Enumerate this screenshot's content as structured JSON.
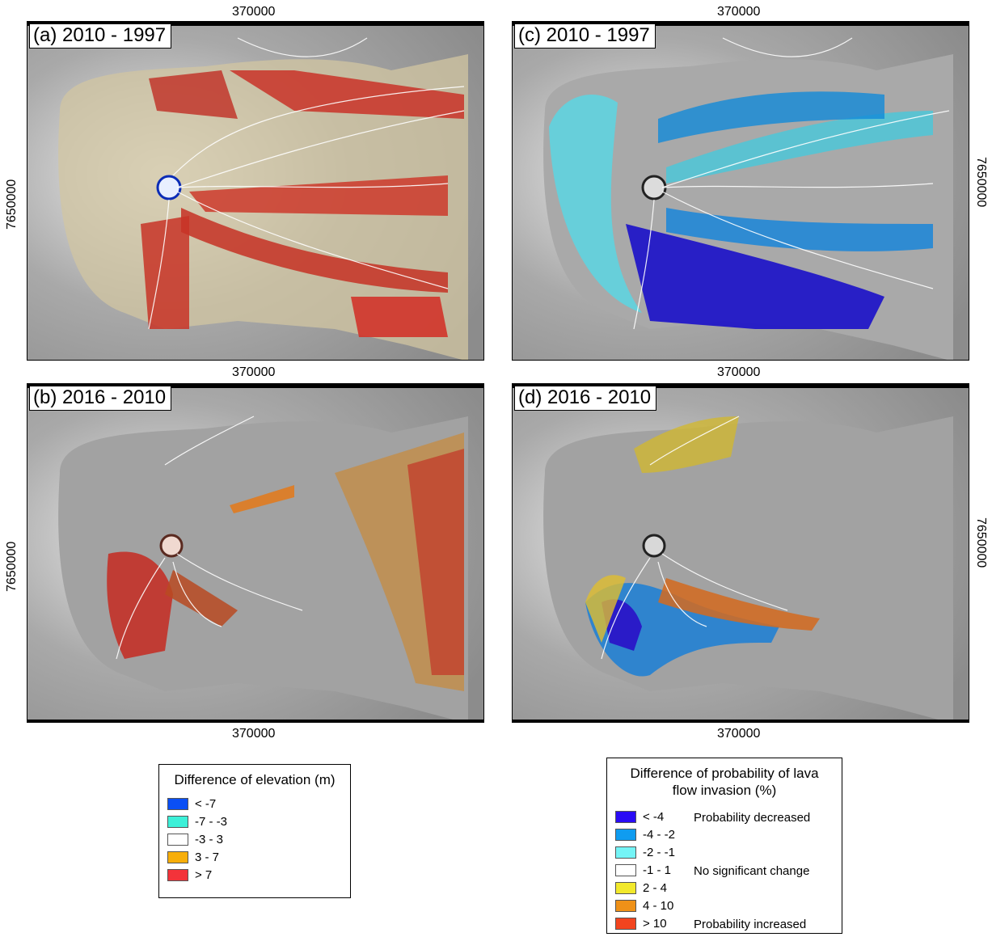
{
  "panels": [
    {
      "id": "a",
      "label": "(a) 2010 - 1997",
      "easting_top": "370000",
      "northing": "7650000",
      "type": "elevation"
    },
    {
      "id": "b",
      "label": "(b) 2016 - 2010",
      "easting_top": "370000",
      "easting_bottom": "370000",
      "northing": "7650000",
      "type": "elevation"
    },
    {
      "id": "c",
      "label": "(c) 2010 - 1997",
      "easting_top": "370000",
      "northing": "7650000",
      "type": "probability"
    },
    {
      "id": "d",
      "label": "(d) 2016 - 2010",
      "easting_top": "370000",
      "easting_bottom": "370000",
      "northing": "7650000",
      "type": "probability"
    }
  ],
  "legend_elevation": {
    "title": "Difference of elevation (m)",
    "items": [
      {
        "label": "< -7",
        "color": "#0a4ff5"
      },
      {
        "label": "-7 - -3",
        "color": "#3cf0d8"
      },
      {
        "label": "-3 - 3",
        "color": "#ffffff"
      },
      {
        "label": "3 - 7",
        "color": "#f7ae0a"
      },
      {
        "label": "> 7",
        "color": "#f3333a"
      }
    ]
  },
  "legend_probability": {
    "title_line1": "Difference of probability of lava",
    "title_line2": "flow invasion (%)",
    "items": [
      {
        "label": "< -4",
        "color": "#2a0cf5"
      },
      {
        "label": "-4 - -2",
        "color": "#0f9cf0"
      },
      {
        "label": "-2 - -1",
        "color": "#74f4f6"
      },
      {
        "label": "-1 - 1",
        "color": "#ffffff"
      },
      {
        "label": "2 - 4",
        "color": "#f2e92c"
      },
      {
        "label": "4 - 10",
        "color": "#ef9118"
      },
      {
        "label": "> 10",
        "color": "#f2441e"
      }
    ],
    "notes": {
      "decreased": "Probability decreased",
      "no_change": "No significant change",
      "increased": "Probability increased"
    }
  }
}
